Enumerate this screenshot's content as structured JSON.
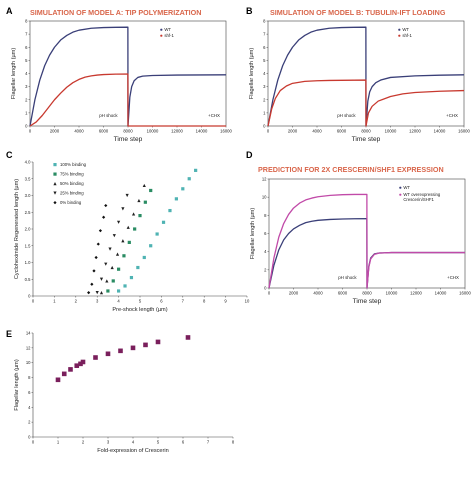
{
  "colors": {
    "title": "#d9664b",
    "wt": "#3a3f78",
    "mut": "#c8392f",
    "mut2": "#c14aa8",
    "black": "#111111",
    "teal": "#4fb3b3",
    "green": "#2a8c63",
    "dark": "#222222",
    "purple": "#7a1f5c"
  },
  "chart_data": [
    {
      "id": "A",
      "type": "line",
      "panel_label": "A",
      "title": "SIMULATION OF MODEL A: TIP POLYMERIZATION",
      "xlabel": "Time step",
      "ylabel": "Flagellar length (µm)",
      "xlim": [
        0,
        16000
      ],
      "ylim": [
        0,
        8
      ],
      "xticks": [
        "0",
        "2000",
        "4000",
        "6000",
        "8000",
        "10000",
        "12000",
        "14000",
        "16000"
      ],
      "yticks": [
        "0",
        "1",
        "2",
        "3",
        "4",
        "5",
        "6",
        "7",
        "8"
      ],
      "annotations": [
        "pH shock",
        "+CHX"
      ],
      "series": [
        {
          "name": "WT",
          "color_key": "wt",
          "x": [
            0,
            400,
            800,
            1200,
            1600,
            2000,
            2500,
            3000,
            3500,
            4000,
            5000,
            6000,
            7000,
            7990,
            8000,
            8150,
            8300,
            8500,
            8800,
            9200,
            10000,
            12000,
            14000,
            16000
          ],
          "y": [
            0,
            2.0,
            3.5,
            4.6,
            5.4,
            6.0,
            6.55,
            6.9,
            7.15,
            7.3,
            7.45,
            7.5,
            7.52,
            7.53,
            0,
            2.2,
            3.0,
            3.45,
            3.7,
            3.8,
            3.85,
            3.88,
            3.89,
            3.9
          ]
        },
        {
          "name": "shf-1",
          "color_key": "mut",
          "x": [
            0,
            500,
            1000,
            1500,
            2000,
            2500,
            3000,
            3500,
            4000,
            4500,
            5000,
            5500,
            6000,
            7000,
            7990,
            8000,
            16000
          ],
          "y": [
            0,
            0.3,
            0.8,
            1.4,
            2.0,
            2.5,
            2.95,
            3.3,
            3.55,
            3.72,
            3.82,
            3.88,
            3.92,
            3.95,
            3.96,
            0,
            0
          ]
        }
      ]
    },
    {
      "id": "B",
      "type": "line",
      "panel_label": "B",
      "title": "SIMULATION OF MODEL B: TUBULIN-IFT LOADING",
      "xlabel": "Time step",
      "ylabel": "Flagellar length (µm)",
      "xlim": [
        0,
        16000
      ],
      "ylim": [
        0,
        8
      ],
      "xticks": [
        "0",
        "2000",
        "4000",
        "6000",
        "8000",
        "10000",
        "12000",
        "14000",
        "16000"
      ],
      "yticks": [
        "0",
        "1",
        "2",
        "3",
        "4",
        "5",
        "6",
        "7",
        "8"
      ],
      "annotations": [
        "pH shock",
        "+CHX"
      ],
      "series": [
        {
          "name": "WT",
          "color_key": "wt",
          "x": [
            0,
            400,
            800,
            1200,
            1600,
            2000,
            2500,
            3000,
            3500,
            4000,
            5000,
            6000,
            7000,
            7990,
            8000,
            8150,
            8300,
            8500,
            8800,
            9200,
            10000,
            12000,
            14000,
            16000
          ],
          "y": [
            0,
            2.0,
            3.5,
            4.6,
            5.4,
            6.0,
            6.55,
            6.9,
            7.15,
            7.3,
            7.45,
            7.5,
            7.52,
            7.53,
            0,
            1.9,
            2.6,
            3.0,
            3.3,
            3.5,
            3.7,
            3.82,
            3.87,
            3.9
          ]
        },
        {
          "name": "shf-1",
          "color_key": "mut",
          "x": [
            0,
            300,
            600,
            1000,
            1500,
            2000,
            3000,
            4000,
            5000,
            6000,
            7990,
            8000,
            8200,
            8500,
            9000,
            10000,
            11000,
            12000,
            14000,
            16000
          ],
          "y": [
            0,
            1.3,
            2.1,
            2.7,
            3.05,
            3.25,
            3.4,
            3.45,
            3.47,
            3.48,
            3.5,
            0,
            1.0,
            1.5,
            1.9,
            2.25,
            2.45,
            2.55,
            2.65,
            2.7
          ]
        }
      ]
    },
    {
      "id": "C",
      "type": "scatter",
      "panel_label": "C",
      "title": "",
      "xlabel": "Pre-shock length (µm)",
      "ylabel": "Cycloheximide Regenerated length (µm)",
      "xlim": [
        0,
        10
      ],
      "ylim": [
        0,
        4
      ],
      "xticks": [
        "0",
        "1",
        "2",
        "3",
        "4",
        "5",
        "6",
        "7",
        "8",
        "9",
        "10"
      ],
      "yticks": [
        "0",
        "0.5",
        "1.0",
        "1.5",
        "2.0",
        "2.5",
        "3.0",
        "3.5",
        "4.0"
      ],
      "legend": "top-left",
      "series": [
        {
          "name": "100% binding",
          "marker": "square",
          "color_key": "teal",
          "x": [
            4.0,
            4.3,
            4.6,
            4.9,
            5.2,
            5.5,
            5.8,
            6.1,
            6.4,
            6.7,
            7.0,
            7.3,
            7.6
          ],
          "y": [
            0.15,
            0.3,
            0.55,
            0.85,
            1.15,
            1.5,
            1.85,
            2.2,
            2.55,
            2.9,
            3.2,
            3.5,
            3.75
          ]
        },
        {
          "name": "75% binding",
          "marker": "square",
          "color_key": "green",
          "x": [
            3.5,
            3.75,
            4.0,
            4.25,
            4.5,
            4.75,
            5.0,
            5.25,
            5.5
          ],
          "y": [
            0.15,
            0.45,
            0.8,
            1.2,
            1.6,
            2.0,
            2.4,
            2.8,
            3.15
          ]
        },
        {
          "name": "50% binding",
          "marker": "triangle-up",
          "color_key": "dark",
          "x": [
            3.2,
            3.45,
            3.7,
            3.95,
            4.2,
            4.45,
            4.7,
            4.95,
            5.2
          ],
          "y": [
            0.1,
            0.45,
            0.85,
            1.25,
            1.65,
            2.05,
            2.45,
            2.85,
            3.3
          ]
        },
        {
          "name": "25% binding",
          "marker": "triangle-down",
          "color_key": "dark",
          "x": [
            3.0,
            3.2,
            3.4,
            3.6,
            3.8,
            4.0,
            4.2,
            4.4
          ],
          "y": [
            0.1,
            0.5,
            0.95,
            1.4,
            1.8,
            2.2,
            2.6,
            3.0
          ]
        },
        {
          "name": "0% binding",
          "marker": "diamond",
          "color_key": "black",
          "x": [
            2.6,
            2.75,
            2.85,
            2.95,
            3.05,
            3.15,
            3.3,
            3.4
          ],
          "y": [
            0.1,
            0.35,
            0.75,
            1.15,
            1.55,
            1.95,
            2.35,
            2.7
          ]
        }
      ]
    },
    {
      "id": "D",
      "type": "line",
      "panel_label": "D",
      "title": "PREDICTION FOR 2X CRESCERIN/SHF1 EXPRESSION",
      "xlabel": "Time step",
      "ylabel": "Flagellar length (µm)",
      "xlim": [
        0,
        16000
      ],
      "ylim": [
        0,
        12
      ],
      "xticks": [
        "0",
        "2000",
        "4000",
        "6000",
        "8000",
        "10000",
        "12000",
        "14000",
        "16000"
      ],
      "yticks": [
        "0",
        "2",
        "4",
        "6",
        "8",
        "10",
        "12"
      ],
      "annotations": [
        "pH shock",
        "+CHX"
      ],
      "legend_lines": [
        "WT",
        "WT overexpressing",
        "Crescerin/SHF1"
      ],
      "series": [
        {
          "name": "WT",
          "color_key": "wt",
          "x": [
            0,
            400,
            800,
            1200,
            1600,
            2000,
            2500,
            3000,
            3500,
            4000,
            5000,
            6000,
            7000,
            7990,
            8000,
            8150,
            8300,
            8600,
            9000,
            10000,
            12000,
            16000
          ],
          "y": [
            0,
            2.5,
            4.2,
            5.3,
            6.0,
            6.5,
            6.9,
            7.2,
            7.35,
            7.45,
            7.55,
            7.6,
            7.62,
            7.63,
            0,
            2.4,
            3.3,
            3.75,
            3.85,
            3.9,
            3.9,
            3.9
          ]
        },
        {
          "name": "WT overexpressing Crescerin/SHF1",
          "color_key": "mut2",
          "x": [
            0,
            400,
            800,
            1200,
            1600,
            2000,
            2500,
            3000,
            3500,
            4000,
            5000,
            6000,
            7000,
            7990,
            8000,
            8150,
            8300,
            8600,
            9000,
            10000,
            12000,
            16000
          ],
          "y": [
            0,
            3.3,
            5.6,
            7.1,
            8.1,
            8.8,
            9.35,
            9.7,
            9.9,
            10.05,
            10.2,
            10.27,
            10.3,
            10.3,
            0,
            2.3,
            3.2,
            3.7,
            3.85,
            3.9,
            3.9,
            3.9
          ]
        }
      ]
    },
    {
      "id": "E",
      "type": "scatter",
      "panel_label": "E",
      "title": "",
      "xlabel": "Fold-expression of Crescerin",
      "ylabel": "Flagellar length (µm)",
      "xlim": [
        0,
        8
      ],
      "ylim": [
        0,
        14
      ],
      "xticks": [
        "0",
        "1",
        "2",
        "3",
        "4",
        "5",
        "6",
        "7",
        "8"
      ],
      "yticks": [
        "0",
        "2",
        "4",
        "6",
        "8",
        "10",
        "12",
        "14"
      ],
      "series": [
        {
          "name": "",
          "marker": "square",
          "color_key": "purple",
          "x": [
            1.0,
            1.25,
            1.5,
            1.75,
            1.9,
            2.0,
            2.5,
            3.0,
            3.5,
            4.0,
            4.5,
            5.0,
            6.2
          ],
          "y": [
            7.7,
            8.5,
            9.1,
            9.6,
            9.85,
            10.1,
            10.7,
            11.2,
            11.6,
            12.0,
            12.4,
            12.8,
            13.4
          ]
        }
      ]
    }
  ]
}
